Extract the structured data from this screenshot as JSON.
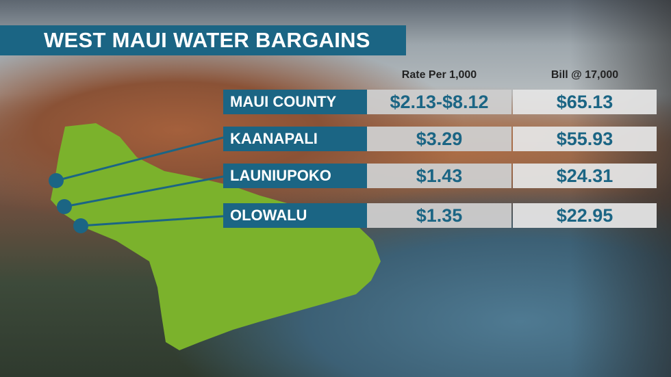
{
  "title": "WEST MAUI WATER BARGAINS",
  "columns": {
    "rate": "Rate Per 1,000",
    "bill": "Bill @ 17,000"
  },
  "rows": [
    {
      "name": "MAUI COUNTY",
      "rate": "$2.13-$8.12",
      "bill": "$65.13"
    },
    {
      "name": "KAANAPALI",
      "rate": "$3.29",
      "bill": "$55.93"
    },
    {
      "name": "LAUNIUPOKO",
      "rate": "$1.43",
      "bill": "$24.31"
    },
    {
      "name": "OLOWALU",
      "rate": "$1.35",
      "bill": "$22.95"
    }
  ],
  "colors": {
    "banner": "#1b6584",
    "map": "#7bb22c",
    "value_text": "#1b6584"
  }
}
